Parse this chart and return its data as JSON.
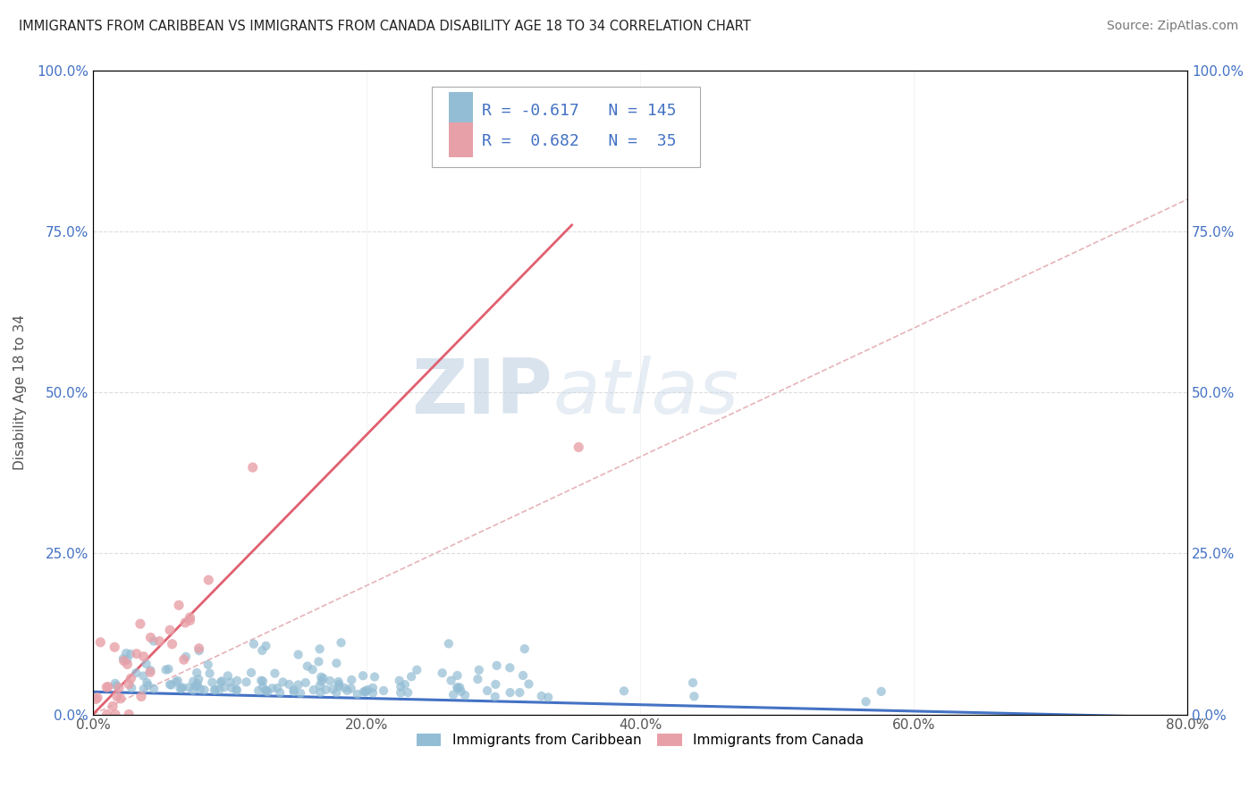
{
  "title": "IMMIGRANTS FROM CARIBBEAN VS IMMIGRANTS FROM CANADA DISABILITY AGE 18 TO 34 CORRELATION CHART",
  "source": "Source: ZipAtlas.com",
  "ylabel": "Disability Age 18 to 34",
  "legend_label1": "Immigrants from Caribbean",
  "legend_label2": "Immigrants from Canada",
  "R1": -0.617,
  "N1": 145,
  "R2": 0.682,
  "N2": 35,
  "xlim": [
    0.0,
    0.8
  ],
  "ylim": [
    0.0,
    1.0
  ],
  "xticks": [
    0.0,
    0.2,
    0.4,
    0.6,
    0.8
  ],
  "yticks": [
    0.0,
    0.25,
    0.5,
    0.75,
    1.0
  ],
  "xticklabels": [
    "0.0%",
    "20.0%",
    "40.0%",
    "60.0%",
    "80.0%"
  ],
  "yticklabels": [
    "0.0%",
    "25.0%",
    "50.0%",
    "75.0%",
    "100.0%"
  ],
  "color_blue": "#93BDD4",
  "color_pink": "#E8A0A8",
  "color_blue_line": "#4472C4",
  "color_pink_line": "#E06070",
  "color_text_blue": "#4472C4",
  "watermark_zip": "ZIP",
  "watermark_atlas": "atlas",
  "background_color": "#FFFFFF",
  "grid_color": "#DDDDDD",
  "seed": 42,
  "blue_line_x": [
    0.0,
    0.8
  ],
  "blue_line_y": [
    0.035,
    -0.005
  ],
  "pink_line_x": [
    0.0,
    0.35
  ],
  "pink_line_y": [
    0.0,
    0.76
  ]
}
